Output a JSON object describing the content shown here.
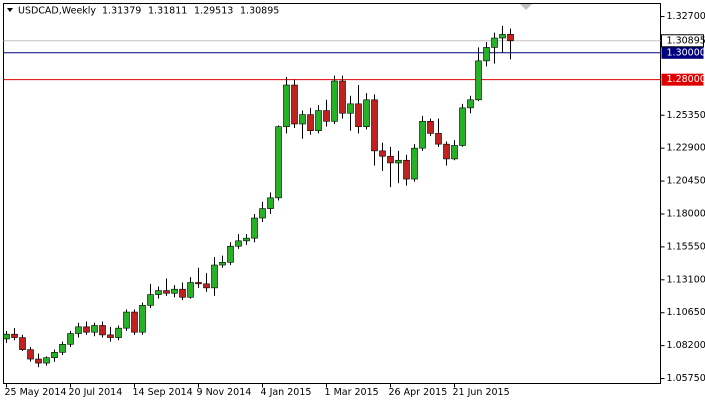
{
  "chart_data": {
    "type": "candlestick",
    "title": "USDCAD,Weekly",
    "header_values": [
      1.31379,
      1.31811,
      1.29513,
      1.30895
    ],
    "categories": [
      "25 May 2014",
      null,
      null,
      null,
      null,
      null,
      null,
      null,
      "20 Jul 2014",
      null,
      null,
      null,
      null,
      null,
      null,
      null,
      "14 Sep 2014",
      null,
      null,
      null,
      null,
      null,
      null,
      null,
      "9 Nov 2014",
      null,
      null,
      null,
      null,
      null,
      null,
      null,
      "4 Jan 2015",
      null,
      null,
      null,
      null,
      null,
      null,
      null,
      "1 Mar 2015",
      null,
      null,
      null,
      null,
      null,
      null,
      null,
      "26 Apr 2015",
      null,
      null,
      null,
      null,
      null,
      null,
      null,
      "21 Jun 2015",
      null,
      null,
      null,
      null,
      null,
      null,
      null
    ],
    "open": [
      1.087,
      1.0905,
      1.088,
      1.079,
      1.072,
      1.069,
      1.073,
      1.077,
      1.083,
      1.091,
      1.096,
      1.092,
      1.097,
      1.09,
      1.088,
      1.095,
      1.107,
      1.092,
      1.112,
      1.12,
      1.123,
      1.121,
      1.124,
      1.118,
      1.129,
      1.128,
      1.125,
      1.142,
      1.144,
      1.156,
      1.16,
      1.162,
      1.177,
      1.184,
      1.192,
      1.245,
      1.276,
      1.247,
      1.254,
      1.242,
      1.257,
      1.249,
      1.279,
      1.255,
      1.262,
      1.245,
      1.265,
      1.227,
      1.223,
      1.218,
      1.22,
      1.206,
      1.229,
      1.249,
      1.24,
      1.232,
      1.221,
      1.231,
      1.259,
      1.265,
      1.294,
      1.304,
      1.311,
      1.31379
    ],
    "high": [
      1.093,
      1.095,
      1.09,
      1.081,
      1.076,
      1.074,
      1.079,
      1.085,
      1.093,
      1.099,
      1.1,
      1.099,
      1.1,
      1.096,
      1.097,
      1.109,
      1.109,
      1.114,
      1.128,
      1.126,
      1.132,
      1.127,
      1.129,
      1.133,
      1.14,
      1.136,
      1.148,
      1.149,
      1.159,
      1.165,
      1.165,
      1.18,
      1.189,
      1.196,
      1.246,
      1.282,
      1.28,
      1.257,
      1.259,
      1.261,
      1.265,
      1.283,
      1.283,
      1.268,
      1.276,
      1.27,
      1.269,
      1.233,
      1.23,
      1.227,
      1.224,
      1.232,
      1.253,
      1.251,
      1.251,
      1.234,
      1.235,
      1.262,
      1.268,
      1.304,
      1.308,
      1.315,
      1.32,
      1.31811
    ],
    "low": [
      1.084,
      1.086,
      1.078,
      1.07,
      1.066,
      1.067,
      1.07,
      1.075,
      1.081,
      1.088,
      1.09,
      1.089,
      1.088,
      1.085,
      1.086,
      1.093,
      1.09,
      1.09,
      1.11,
      1.117,
      1.119,
      1.118,
      1.116,
      1.117,
      1.125,
      1.122,
      1.119,
      1.14,
      1.142,
      1.154,
      1.157,
      1.159,
      1.174,
      1.18,
      1.19,
      1.24,
      1.244,
      1.236,
      1.239,
      1.24,
      1.245,
      1.247,
      1.251,
      1.242,
      1.24,
      1.243,
      1.216,
      1.212,
      1.2,
      1.203,
      1.201,
      1.204,
      1.227,
      1.238,
      1.23,
      1.216,
      1.22,
      1.23,
      1.255,
      1.264,
      1.29,
      1.292,
      1.3,
      1.29513
    ],
    "close": [
      1.0905,
      1.088,
      1.079,
      1.072,
      1.069,
      1.073,
      1.077,
      1.083,
      1.091,
      1.096,
      1.092,
      1.097,
      1.09,
      1.088,
      1.095,
      1.107,
      1.092,
      1.112,
      1.12,
      1.123,
      1.121,
      1.124,
      1.118,
      1.129,
      1.128,
      1.125,
      1.142,
      1.144,
      1.156,
      1.16,
      1.162,
      1.177,
      1.184,
      1.192,
      1.245,
      1.276,
      1.247,
      1.254,
      1.242,
      1.257,
      1.249,
      1.279,
      1.255,
      1.262,
      1.245,
      1.265,
      1.227,
      1.223,
      1.218,
      1.22,
      1.206,
      1.229,
      1.249,
      1.24,
      1.232,
      1.221,
      1.231,
      1.259,
      1.265,
      1.294,
      1.304,
      1.311,
      1.3137,
      1.30895
    ],
    "up_color": "#22b422",
    "down_color": "#c81e1e",
    "ylim": [
      1.0538,
      1.3367
    ],
    "yticks": [
      {
        "value": 1.327,
        "label": "1.32700"
      },
      {
        "value": 1.2535,
        "label": "1.25350"
      },
      {
        "value": 1.229,
        "label": "1.22900"
      },
      {
        "value": 1.2045,
        "label": "1.20450"
      },
      {
        "value": 1.18,
        "label": "1.18000"
      },
      {
        "value": 1.1555,
        "label": "1.15550"
      },
      {
        "value": 1.131,
        "label": "1.13100"
      },
      {
        "value": 1.1065,
        "label": "1.10650"
      },
      {
        "value": 1.082,
        "label": "1.08200"
      },
      {
        "value": 1.0575,
        "label": "1.05750"
      }
    ],
    "levels": [
      {
        "value": 1.3,
        "label": "1.30000",
        "color": "#000080"
      },
      {
        "value": 1.28,
        "label": "1.28000",
        "color": "#e00000"
      }
    ],
    "last_price": 1.30895,
    "last_price_color": "#c0c0c0"
  }
}
